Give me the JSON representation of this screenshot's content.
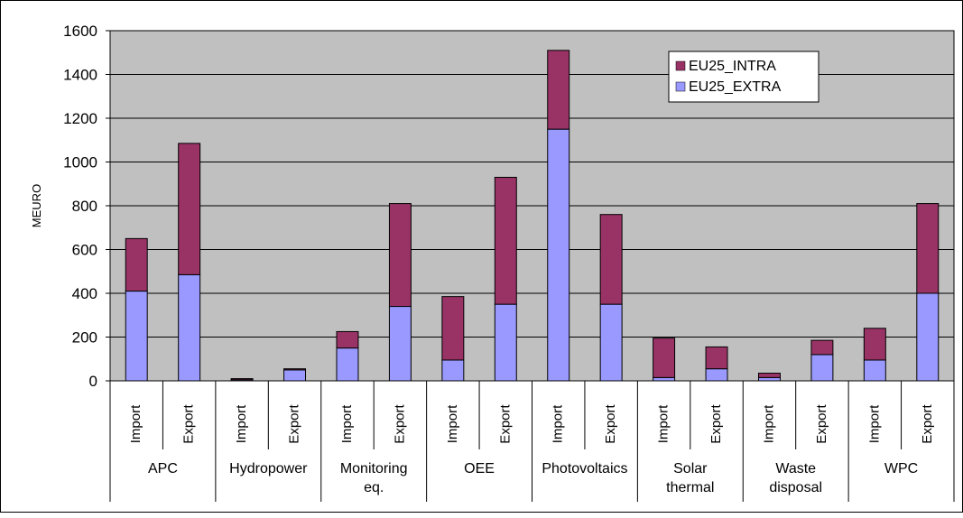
{
  "chart_data": {
    "type": "bar",
    "stacked": true,
    "ylabel": "MEURO",
    "ylim": [
      0,
      1600
    ],
    "yticks": [
      0,
      200,
      400,
      600,
      800,
      1000,
      1200,
      1400,
      1600
    ],
    "grid": true,
    "legend_position": "top-right",
    "colors": {
      "plot_background": "#c0c0c0",
      "EU25_INTRA": "#993366",
      "EU25_EXTRA": "#9999ff"
    },
    "groups": [
      {
        "name": "APC",
        "lines": [
          "APC"
        ]
      },
      {
        "name": "Hydropower",
        "lines": [
          "Hydropower"
        ]
      },
      {
        "name": "Monitoring eq.",
        "lines": [
          "Monitoring",
          "eq."
        ]
      },
      {
        "name": "OEE",
        "lines": [
          "OEE"
        ]
      },
      {
        "name": "Photovoltaics",
        "lines": [
          "Photovoltaics"
        ]
      },
      {
        "name": "Solar thermal",
        "lines": [
          "Solar",
          "thermal"
        ]
      },
      {
        "name": "Waste disposal",
        "lines": [
          "Waste",
          "disposal"
        ]
      },
      {
        "name": "WPC",
        "lines": [
          "WPC"
        ]
      }
    ],
    "subcategories": [
      "Import",
      "Export"
    ],
    "series": [
      {
        "name": "EU25_INTRA",
        "values": [
          240,
          600,
          5,
          5,
          75,
          470,
          290,
          580,
          360,
          410,
          180,
          100,
          20,
          65,
          145,
          410
        ]
      },
      {
        "name": "EU25_EXTRA",
        "values": [
          410,
          485,
          5,
          50,
          150,
          340,
          95,
          350,
          1150,
          350,
          15,
          55,
          15,
          120,
          95,
          400
        ]
      }
    ]
  }
}
